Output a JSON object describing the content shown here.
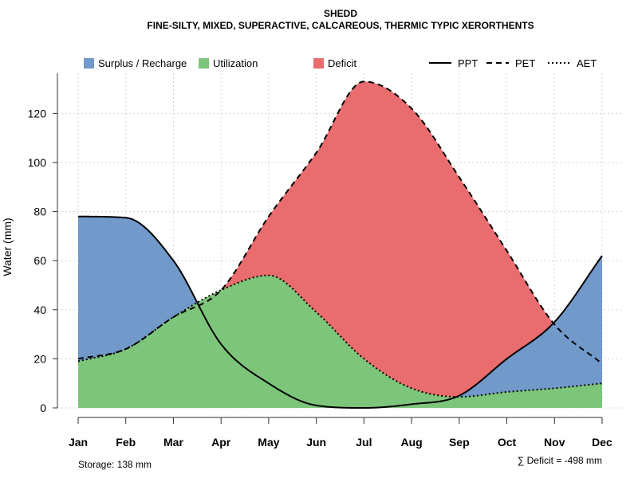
{
  "chart_data": {
    "type": "area",
    "title": "SHEDD",
    "subtitle": "FINE-SILTY, MIXED, SUPERACTIVE, CALCAREOUS, THERMIC TYPIC XERORTHENTS",
    "xlabel": "",
    "ylabel": "Water (mm)",
    "ylim": [
      0,
      138
    ],
    "yticks": [
      0,
      20,
      40,
      60,
      80,
      100,
      120
    ],
    "grid": true,
    "categories": [
      "Jan",
      "Feb",
      "Mar",
      "Apr",
      "May",
      "Jun",
      "Jul",
      "Aug",
      "Sep",
      "Oct",
      "Nov",
      "Dec"
    ],
    "series": [
      {
        "name": "PPT",
        "style": "solid",
        "values": [
          78,
          77.5,
          60,
          26,
          10,
          1,
          0,
          1.5,
          5,
          20,
          35,
          62
        ]
      },
      {
        "name": "PET",
        "style": "dashed",
        "values": [
          20,
          24,
          37,
          48,
          78,
          104,
          133,
          122,
          94,
          64,
          34,
          18
        ]
      },
      {
        "name": "AET",
        "style": "dotted",
        "values": [
          19,
          24,
          37,
          48,
          54,
          39,
          20,
          8,
          4.5,
          6.5,
          8,
          10
        ]
      }
    ],
    "legend": [
      {
        "label": "Surplus / Recharge",
        "kind": "fill",
        "color": "#7199C9"
      },
      {
        "label": "Utilization",
        "kind": "fill",
        "color": "#7DC57A"
      },
      {
        "label": "Deficit",
        "kind": "fill",
        "color": "#E96C6E"
      },
      {
        "label": "PPT",
        "kind": "line",
        "dash": "solid"
      },
      {
        "label": "PET",
        "kind": "line",
        "dash": "dashed"
      },
      {
        "label": "AET",
        "kind": "line",
        "dash": "dotted"
      }
    ],
    "legend_position": "top",
    "colors": {
      "surplus": "#7199C9",
      "utilization": "#7DC57A",
      "deficit": "#E96C6E",
      "grid": "#d3d3d3",
      "line": "#000000"
    }
  },
  "footer": {
    "storage": "Storage: 138 mm",
    "deficit_sum": "∑ Deficit = -498 mm"
  }
}
